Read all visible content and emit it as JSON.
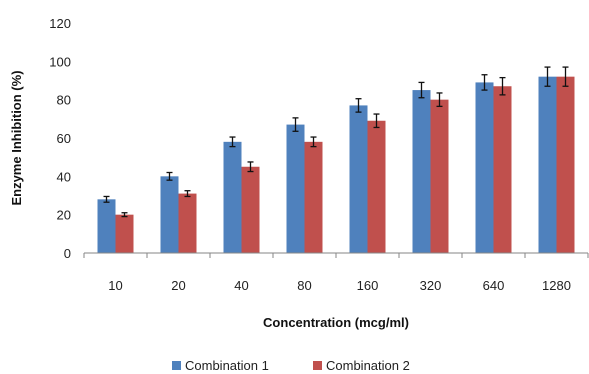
{
  "chart_data": {
    "type": "bar",
    "title": "",
    "xlabel": "Concentration (mcg/ml)",
    "ylabel": "Enzyme Inhibition (%)",
    "ylim": [
      0,
      120
    ],
    "yticks": [
      0,
      20,
      40,
      60,
      80,
      100,
      120
    ],
    "categories": [
      "10",
      "20",
      "40",
      "80",
      "160",
      "320",
      "640",
      "1280"
    ],
    "grid": false,
    "legend_position": "bottom",
    "series": [
      {
        "name": "Combination 1",
        "color": "#4f81bd",
        "values": [
          28,
          40,
          58,
          67,
          77,
          85,
          89,
          92
        ],
        "errors": [
          1.5,
          2,
          2.5,
          3.5,
          3.5,
          4,
          4,
          5
        ]
      },
      {
        "name": "Combination 2",
        "color": "#c0504d",
        "values": [
          20,
          31,
          45,
          58,
          69,
          80,
          87,
          92
        ],
        "errors": [
          1,
          1.5,
          2.5,
          2.5,
          3.5,
          3.5,
          4.5,
          5
        ]
      }
    ]
  }
}
